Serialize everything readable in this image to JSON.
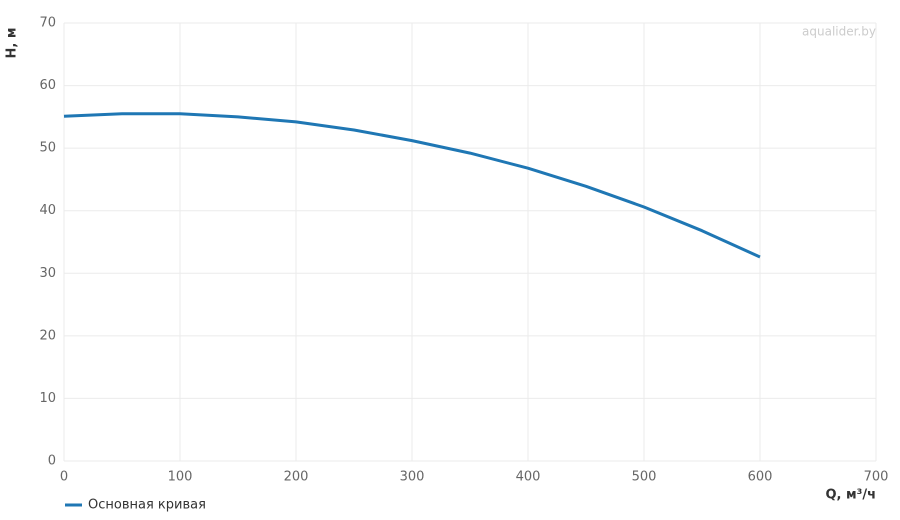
{
  "chart_data": {
    "type": "line",
    "watermark": "aqualider.by",
    "x_label": "Q, м³/ч",
    "y_label": "H, м",
    "x": [
      0,
      50,
      100,
      150,
      200,
      250,
      300,
      350,
      400,
      450,
      500,
      550,
      600
    ],
    "series": [
      {
        "name": "Основная кривая",
        "color": "#1f77b4",
        "values": [
          55.1,
          55.5,
          55.5,
          55.0,
          54.2,
          52.9,
          51.2,
          49.2,
          46.8,
          43.9,
          40.6,
          36.8,
          32.6
        ]
      }
    ],
    "xlim": [
      0,
      700
    ],
    "xticks": [
      0,
      100,
      200,
      300,
      400,
      500,
      600,
      700
    ],
    "ylim": [
      0,
      70
    ],
    "yticks": [
      0,
      10,
      20,
      30,
      40,
      50,
      60,
      70
    ],
    "grid": true,
    "legend": "bottom-left"
  }
}
